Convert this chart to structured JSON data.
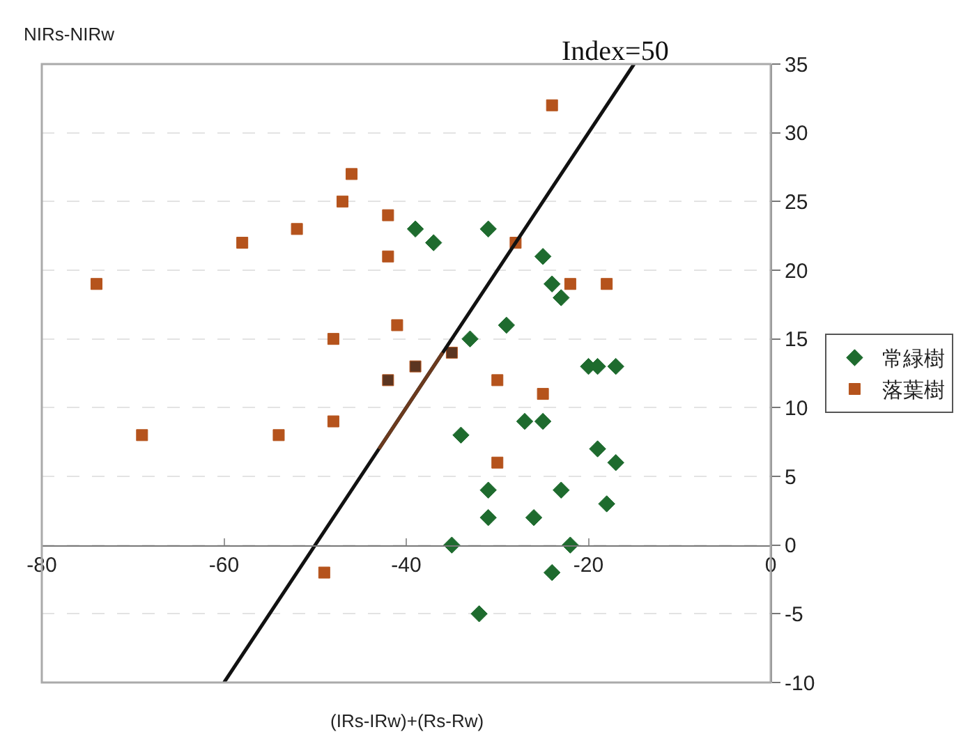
{
  "chart_data": {
    "type": "scatter",
    "xlabel": "(IRs-IRw)+(Rs-Rw)",
    "ylabel": "NIRs-NIRw",
    "xlim": [
      -80,
      0
    ],
    "xticks": [
      -80,
      -60,
      -40,
      -20,
      0
    ],
    "ylim": [
      -10,
      35
    ],
    "yticks": [
      -10,
      -5,
      0,
      5,
      10,
      15,
      20,
      25,
      30,
      35
    ],
    "grid": "y",
    "legend": "right",
    "annotations": [
      {
        "text": "Index=50",
        "x": -15,
        "y": 35
      }
    ],
    "series": [
      {
        "name": "常緑樹",
        "marker": "diamond",
        "color": "#1e6b2e",
        "x": [
          -39,
          -37,
          -31,
          -25,
          -24,
          -23,
          -29,
          -33,
          -20,
          -19,
          -17,
          -34,
          -27,
          -25,
          -19,
          -17,
          -31,
          -23,
          -18,
          -31,
          -26,
          -35,
          -22,
          -24,
          -32
        ],
        "values": [
          23,
          22,
          23,
          21,
          19,
          18,
          16,
          15,
          13,
          13,
          13,
          8,
          9,
          9,
          7,
          6,
          4,
          4,
          3,
          2,
          2,
          0,
          0,
          -2,
          -5
        ]
      },
      {
        "name": "落葉樹",
        "marker": "square",
        "color": "#b5531c",
        "x": [
          -74,
          -58,
          -52,
          -47,
          -46,
          -42,
          -42,
          -41,
          -48,
          -69,
          -54,
          -48,
          -49,
          -42,
          -39,
          -24,
          -28,
          -22,
          -18,
          -35,
          -30,
          -25,
          -30
        ],
        "values": [
          19,
          22,
          23,
          25,
          27,
          24,
          21,
          16,
          15,
          8,
          8,
          9,
          -2,
          12,
          13,
          32,
          22,
          19,
          19,
          14,
          12,
          11,
          6
        ],
        "colors": [
          "#b5531c",
          "#b5531c",
          "#b5531c",
          "#b5531c",
          "#b5531c",
          "#b5531c",
          "#b5531c",
          "#b5531c",
          "#b5531c",
          "#b5531c",
          "#b5531c",
          "#b5531c",
          "#b5531c",
          "#5c3520",
          "#5c3520",
          "#b5531c",
          "#b5531c",
          "#b5531c",
          "#b5531c",
          "#5c3520",
          "#b5531c",
          "#b5531c",
          "#b5531c"
        ]
      },
      {
        "type": "line",
        "color": "#111111",
        "marker": "none",
        "line_style": "solid",
        "x": [
          -60,
          -15
        ],
        "values": [
          -10,
          35
        ]
      },
      {
        "type": "line",
        "color": "#6b3a1e",
        "marker": "none",
        "line_style": "solid",
        "x": [
          -43,
          -36
        ],
        "values": [
          7,
          14
        ]
      }
    ]
  }
}
